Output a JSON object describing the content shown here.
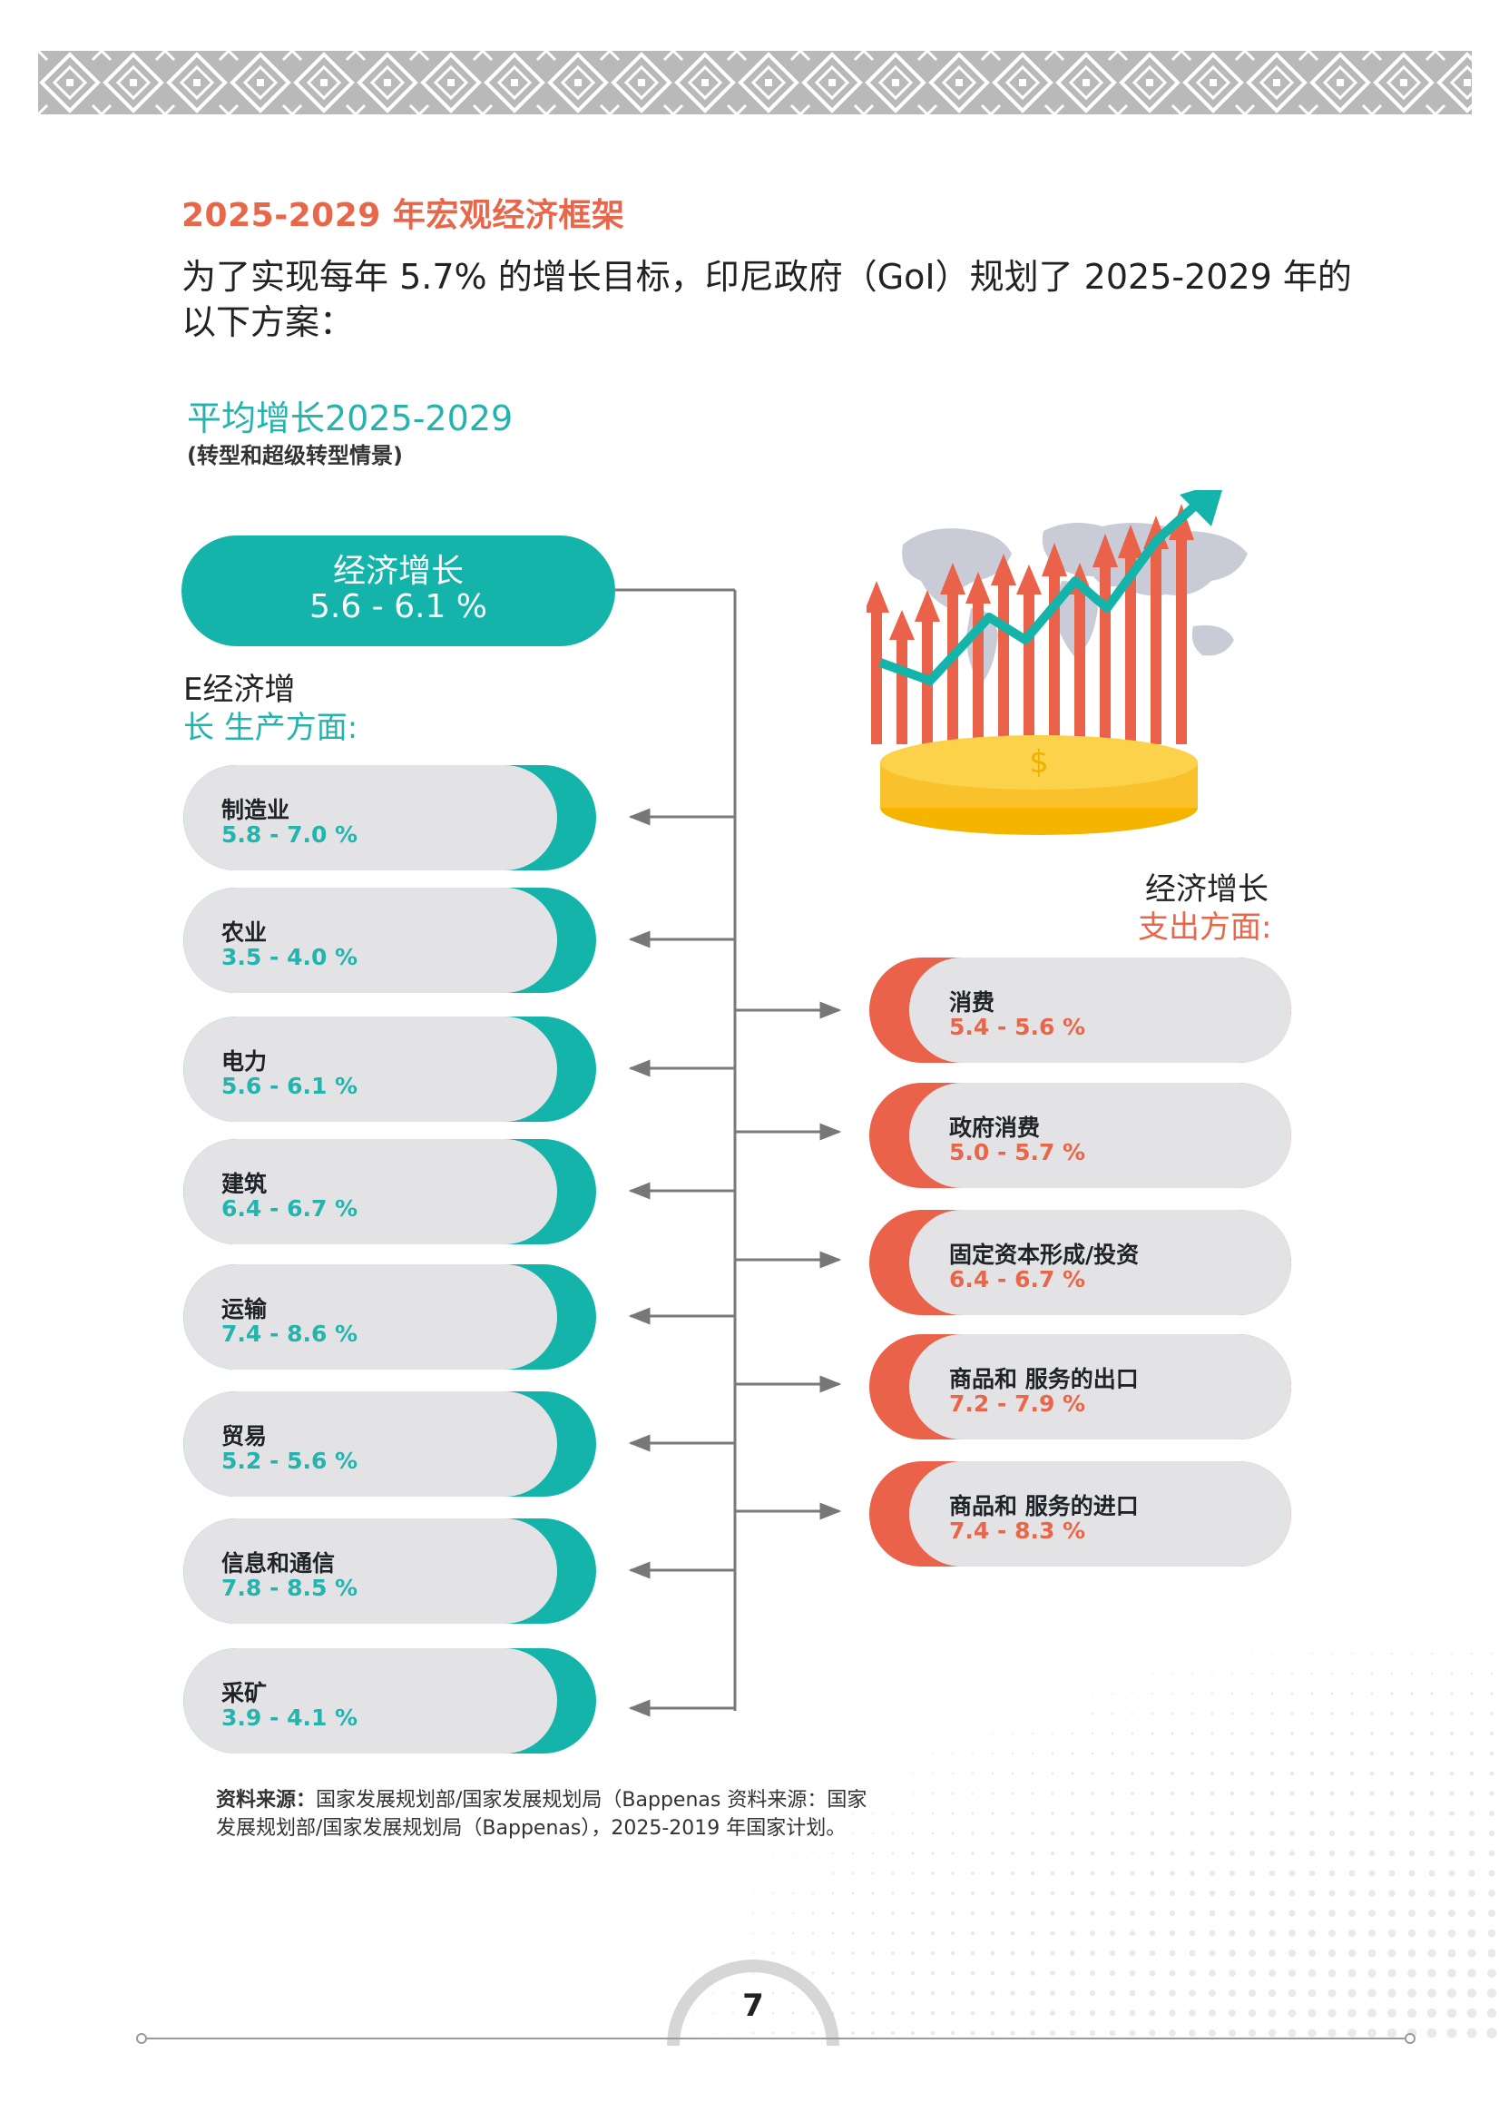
{
  "section_title": "2025-2029 年宏观经济框架",
  "intro": "为了实现每年 5.7% 的增长目标，印尼政府（GoI）规划了 2025-2029 年的以下方案：",
  "chart": {
    "title": "平均增长2025-2029",
    "subtitle": "(转型和超级转型情景)",
    "main": {
      "label": "经济增长",
      "value": "5.6 - 6.1 %"
    },
    "production_heading_1": "E经济增",
    "production_heading_2": "长 生产方面:",
    "expenditure_heading_1": "经济增长",
    "expenditure_heading_2": "支出方面:",
    "production": [
      {
        "name": "制造业",
        "value": "5.8 - 7.0 %"
      },
      {
        "name": "农业",
        "value": "3.5 - 4.0 %"
      },
      {
        "name": "电力",
        "value": "5.6 - 6.1 %"
      },
      {
        "name": "建筑",
        "value": "6.4 - 6.7 %"
      },
      {
        "name": "运输",
        "value": "7.4 - 8.6 %"
      },
      {
        "name": "贸易",
        "value": "5.2 - 5.6 %"
      },
      {
        "name": "信息和通信",
        "value": "7.8 - 8.5 %"
      },
      {
        "name": "采矿",
        "value": "3.9 - 4.1 %"
      }
    ],
    "expenditure": [
      {
        "name": "消费",
        "value": "5.4 - 5.6 %"
      },
      {
        "name": "政府消费",
        "value": "5.0 - 5.7 %"
      },
      {
        "name": "固定资本形成/投资",
        "value": "6.4 - 6.7 %"
      },
      {
        "name": "商品和 服务的出口",
        "value": "7.2 - 7.9 %"
      },
      {
        "name": "商品和 服务的进口",
        "value": "7.4 - 8.3 %"
      }
    ]
  },
  "source": {
    "label": "资料来源：",
    "text": "国家发展规划部/国家发展规划局（Bappenas 资料来源：国家发展规划部/国家发展规划局（Bappenas），2025-2019 年国家计划。"
  },
  "page_number": "7",
  "colors": {
    "teal": "#14b4ab",
    "coral": "#ea6249",
    "pill_gray": "#e3e3e6",
    "gold": "#f5b400"
  }
}
